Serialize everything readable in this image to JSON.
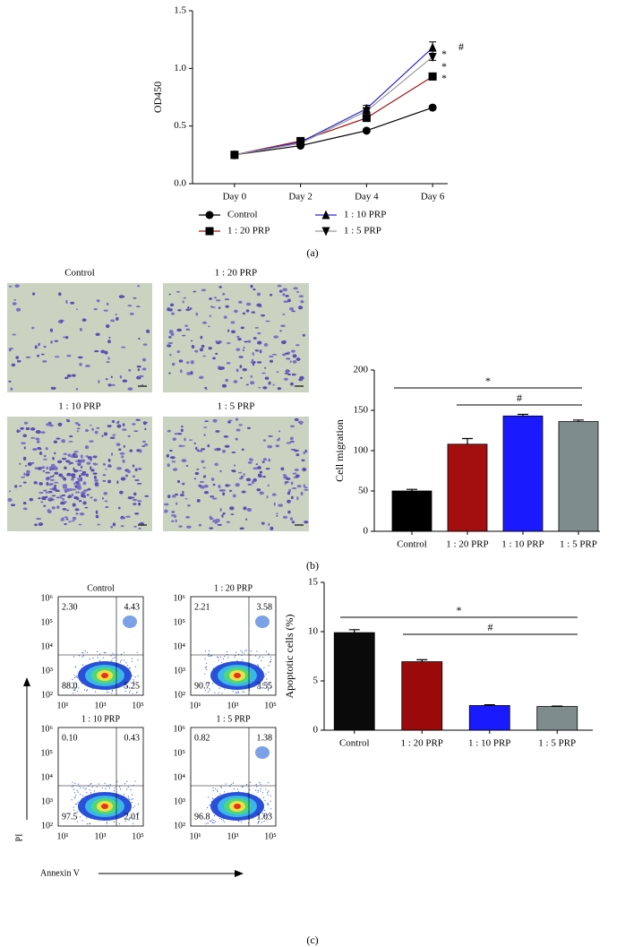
{
  "chart_data": [
    {
      "type": "line",
      "ylabel": "OD450",
      "categories": [
        "Day 0",
        "Day 2",
        "Day 4",
        "Day 6"
      ],
      "series": [
        {
          "name": "Control",
          "color": "#000000",
          "marker": "circle",
          "values": [
            0.25,
            0.33,
            0.46,
            0.66
          ],
          "errors": [
            0.01,
            0.01,
            0.01,
            0.01
          ]
        },
        {
          "name": "1 : 20 PRP",
          "color": "#a31515",
          "marker": "square",
          "values": [
            0.25,
            0.37,
            0.57,
            0.93
          ],
          "errors": [
            0.01,
            0.01,
            0.02,
            0.03
          ]
        },
        {
          "name": "1 : 10 PRP",
          "color": "#2a2ad0",
          "marker": "triangle-up",
          "values": [
            0.25,
            0.36,
            0.65,
            1.18
          ],
          "errors": [
            0.01,
            0.01,
            0.03,
            0.05
          ]
        },
        {
          "name": "1 : 5 PRP",
          "color": "#9a9a9a",
          "marker": "triangle-down",
          "values": [
            0.25,
            0.35,
            0.63,
            1.1
          ],
          "errors": [
            0.01,
            0.01,
            0.02,
            0.03
          ]
        }
      ],
      "ylim": [
        0,
        1.5
      ],
      "yticks": [
        {
          "value": 0,
          "label": "0.0"
        },
        {
          "value": 0.5,
          "label": "0.5"
        },
        {
          "value": 1,
          "label": "1.0"
        },
        {
          "value": 1.5,
          "label": "1.5"
        }
      ],
      "annotations": [
        "#",
        "*",
        "*",
        "*"
      ],
      "label": "(a)"
    },
    {
      "type": "bar",
      "ylabel": "Cell migration",
      "categories": [
        "Control",
        "1 : 20 PRP",
        "1 : 10 PRP",
        "1 : 5 PRP"
      ],
      "values": [
        50,
        108,
        143,
        136
      ],
      "errors": [
        2,
        7,
        2,
        2
      ],
      "colors": [
        "#000000",
        "#a30f0f",
        "#1a1aff",
        "#7f8c8c"
      ],
      "ylim": [
        0,
        200
      ],
      "yticks": [
        0,
        50,
        100,
        150,
        200
      ],
      "annotations": [
        "*",
        "#"
      ],
      "label": "(b)"
    },
    {
      "type": "bar",
      "ylabel": "Apoptotic cells (%)",
      "categories": [
        "Control",
        "1 : 20 PRP",
        "1 : 10 PRP",
        "1 : 5 PRP"
      ],
      "values": [
        9.9,
        6.95,
        2.5,
        2.4
      ],
      "errors": [
        0.3,
        0.2,
        0.08,
        0.05
      ],
      "colors": [
        "#0a0a0a",
        "#9a0a0a",
        "#1a1aff",
        "#7f8c8c"
      ],
      "ylim": [
        0,
        15
      ],
      "yticks": [
        0,
        5,
        10,
        15
      ],
      "annotations": [
        "*",
        "#"
      ],
      "label": "(c)"
    }
  ],
  "micrographs": [
    "Control",
    "1 : 20 PRP",
    "1 : 10 PRP",
    "1 : 5 PRP"
  ],
  "flow_plots": [
    {
      "title": "Control",
      "quadrants": [
        "2.30",
        "4.43",
        "88.0",
        "5.25"
      ]
    },
    {
      "title": "1 : 20 PRP",
      "quadrants": [
        "2.21",
        "3.58",
        "90.7",
        "3.55"
      ]
    },
    {
      "title": "1 : 10 PRP",
      "quadrants": [
        "0.10",
        "0.43",
        "97.5",
        "2.01"
      ]
    },
    {
      "title": "1 : 5 PRP",
      "quadrants": [
        "0.82",
        "1.38",
        "96.8",
        "1.03"
      ]
    }
  ],
  "flow_axes": {
    "x_ticks": [
      "10¹",
      "10³",
      "10⁵"
    ],
    "y_ticks": [
      "10⁶",
      "10⁵",
      "10⁴",
      "10³",
      "10²"
    ],
    "x_label": "Annexin V",
    "y_label": "PI"
  }
}
